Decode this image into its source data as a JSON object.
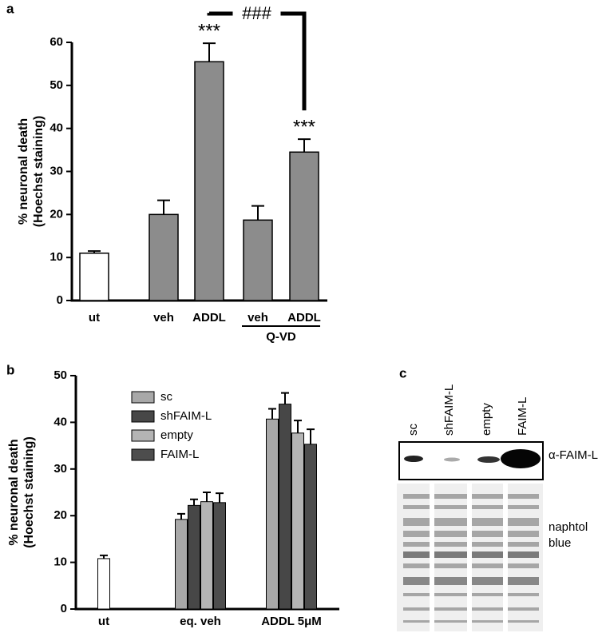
{
  "chart_data": [
    {
      "type": "bar",
      "panel": "a",
      "ylabel": [
        "% neuronal death",
        "(Hoechst staining)"
      ],
      "categories": [
        "ut",
        "veh",
        "ADDL",
        "veh",
        "ADDL"
      ],
      "values": [
        11,
        20,
        55.5,
        18.7,
        34.5
      ],
      "errors": [
        0.5,
        3.3,
        4.3,
        3.3,
        3
      ],
      "colors": [
        "#ffffff",
        "#8c8c8c",
        "#8c8c8c",
        "#8c8c8c",
        "#8c8c8c"
      ],
      "ylim": [
        0,
        60
      ],
      "yticks": [
        0,
        10,
        20,
        30,
        40,
        50,
        60
      ],
      "significance": [
        {
          "label": "***",
          "category": 2
        },
        {
          "label": "***",
          "category": 4
        }
      ],
      "comparison": {
        "label": "###",
        "from": 2,
        "to": 4
      },
      "group_label": {
        "label": "Q-VD",
        "from": 3,
        "to": 4
      }
    },
    {
      "type": "grouped_bar",
      "panel": "b",
      "ylabel": [
        "% neuronal death",
        "(Hoechst staining)"
      ],
      "categories": [
        "ut",
        "eq. veh",
        "ADDL 5μM"
      ],
      "reference": {
        "color": "#ffffff",
        "values": [
          10.8,
          null,
          null
        ],
        "errors": [
          0.7,
          null,
          null
        ]
      },
      "series": [
        {
          "name": "sc",
          "color": "#a8a8a8",
          "values": [
            null,
            19.2,
            40.7
          ],
          "errors": [
            null,
            1.2,
            2.2
          ]
        },
        {
          "name": "shFAIM-L",
          "color": "#474747",
          "values": [
            null,
            22.2,
            43.9
          ],
          "errors": [
            null,
            1.3,
            2.4
          ]
        },
        {
          "name": "empty",
          "color": "#b4b4b4",
          "values": [
            null,
            23,
            37.7
          ],
          "errors": [
            null,
            2,
            2.7
          ]
        },
        {
          "name": "FAIM-L",
          "color": "#4d4d4d",
          "values": [
            null,
            22.8,
            35.3
          ],
          "errors": [
            null,
            2,
            3.2
          ]
        }
      ],
      "ylim": [
        0,
        50
      ],
      "yticks": [
        0,
        10,
        20,
        30,
        40,
        50
      ],
      "legend": "upper left"
    }
  ],
  "blot": {
    "panel": "c",
    "lanes": [
      "sc",
      "shFAIM-L",
      "empty",
      "FAIM-L"
    ],
    "band_label": "α-FAIM-L",
    "stain_label": [
      "naphtol",
      "blue"
    ]
  }
}
